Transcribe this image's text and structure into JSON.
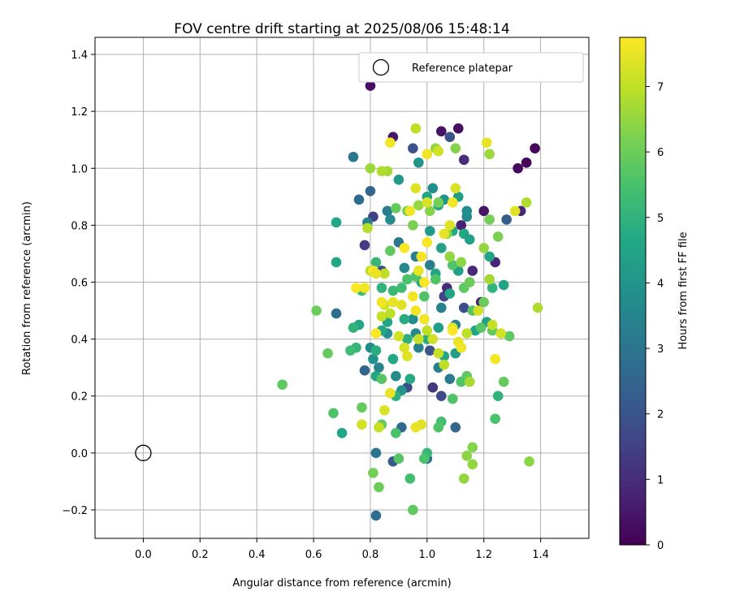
{
  "chart_data": {
    "type": "scatter",
    "title": "FOV centre drift starting at 2025/08/06 15:48:14",
    "xlabel": "Angular distance from reference (arcmin)",
    "ylabel": "Rotation from reference (arcmin)",
    "xlim": [
      -0.17,
      1.57
    ],
    "ylim": [
      -0.3,
      1.46
    ],
    "xticks": [
      "0.0",
      "0.2",
      "0.4",
      "0.6",
      "0.8",
      "1.0",
      "1.2",
      "1.4"
    ],
    "yticks": [
      "−0.2",
      "0.0",
      "0.2",
      "0.4",
      "0.6",
      "0.8",
      "1.0",
      "1.2",
      "1.4"
    ],
    "grid": true,
    "legend": {
      "position": "top-right",
      "entries": [
        "Reference platepar"
      ]
    },
    "colorbar": {
      "label": "Hours from first FF file",
      "min": 0,
      "max": 7.75,
      "ticks": [
        "0",
        "1",
        "2",
        "3",
        "4",
        "5",
        "6",
        "7"
      ],
      "colormap": "viridis"
    },
    "reference_point": {
      "x": 0.0,
      "y": 0.0
    },
    "points": [
      [
        0.8,
        1.29,
        0.3
      ],
      [
        1.05,
        1.13,
        0.4
      ],
      [
        1.11,
        1.14,
        0.3
      ],
      [
        1.38,
        1.07,
        0.2
      ],
      [
        1.35,
        1.02,
        0.1
      ],
      [
        1.32,
        1.0,
        0.2
      ],
      [
        0.88,
        1.11,
        0.5
      ],
      [
        1.08,
        1.11,
        2.0
      ],
      [
        0.95,
        1.07,
        2.0
      ],
      [
        1.13,
        1.03,
        1.0
      ],
      [
        1.33,
        0.85,
        0.8
      ],
      [
        1.12,
        0.8,
        0.7
      ],
      [
        1.28,
        0.82,
        2.3
      ],
      [
        1.2,
        0.85,
        0.4
      ],
      [
        1.24,
        0.67,
        0.8
      ],
      [
        1.16,
        0.64,
        0.9
      ],
      [
        1.19,
        0.53,
        0.8
      ],
      [
        0.81,
        0.83,
        1.5
      ],
      [
        0.8,
        0.92,
        2.5
      ],
      [
        0.78,
        0.73,
        1.3
      ],
      [
        0.76,
        0.89,
        2.7
      ],
      [
        0.68,
        0.49,
        2.8
      ],
      [
        0.78,
        0.29,
        2.5
      ],
      [
        0.84,
        0.64,
        1.8
      ],
      [
        1.06,
        0.55,
        1.6
      ],
      [
        1.07,
        0.58,
        0.9
      ],
      [
        1.13,
        0.51,
        1.8
      ],
      [
        1.01,
        0.36,
        2.0
      ],
      [
        1.02,
        0.23,
        1.3
      ],
      [
        1.05,
        0.2,
        1.7
      ],
      [
        1.1,
        0.09,
        2.5
      ],
      [
        0.93,
        0.23,
        1.8
      ],
      [
        0.91,
        0.09,
        2.7
      ],
      [
        0.82,
        0.0,
        3.0
      ],
      [
        0.88,
        -0.03,
        2.2
      ],
      [
        0.82,
        -0.22,
        2.8
      ],
      [
        1.0,
        -0.02,
        2.8
      ],
      [
        0.74,
        1.04,
        3.1
      ],
      [
        0.86,
        0.85,
        3.2
      ],
      [
        0.79,
        0.81,
        3.4
      ],
      [
        0.87,
        0.82,
        3.7
      ],
      [
        0.9,
        0.74,
        3.1
      ],
      [
        0.96,
        0.69,
        3.3
      ],
      [
        1.01,
        0.66,
        3.3
      ],
      [
        0.92,
        0.65,
        3.6
      ],
      [
        1.05,
        0.51,
        3.4
      ],
      [
        1.1,
        0.45,
        3.4
      ],
      [
        0.96,
        0.42,
        3.6
      ],
      [
        0.95,
        0.47,
        3.8
      ],
      [
        0.8,
        0.37,
        3.7
      ],
      [
        0.83,
        0.3,
        3.4
      ],
      [
        0.81,
        0.33,
        3.9
      ],
      [
        0.86,
        0.42,
        3.8
      ],
      [
        0.89,
        0.27,
        3.7
      ],
      [
        0.91,
        0.22,
        3.9
      ],
      [
        0.97,
        0.37,
        3.4
      ],
      [
        1.04,
        0.3,
        3.3
      ],
      [
        1.08,
        0.26,
        3.2
      ],
      [
        1.14,
        0.83,
        3.6
      ],
      [
        1.14,
        0.85,
        3.8
      ],
      [
        1.02,
        0.93,
        3.8
      ],
      [
        1.06,
        0.89,
        4.0
      ],
      [
        1.11,
        0.9,
        4.3
      ],
      [
        0.9,
        0.96,
        4.1
      ],
      [
        0.97,
        1.02,
        4.0
      ],
      [
        1.0,
        0.9,
        4.5
      ],
      [
        1.04,
        0.87,
        4.7
      ],
      [
        1.09,
        0.78,
        4.7
      ],
      [
        1.13,
        0.77,
        4.6
      ],
      [
        1.01,
        0.78,
        4.2
      ],
      [
        1.05,
        0.72,
        4.4
      ],
      [
        0.98,
        0.6,
        4.6
      ],
      [
        1.03,
        0.63,
        4.5
      ],
      [
        1.08,
        0.56,
        4.5
      ],
      [
        1.11,
        0.64,
        4.3
      ],
      [
        1.15,
        0.75,
        4.4
      ],
      [
        1.22,
        0.69,
        4.5
      ],
      [
        1.23,
        0.58,
        5.0
      ],
      [
        1.27,
        0.59,
        4.5
      ],
      [
        1.21,
        0.46,
        4.4
      ],
      [
        1.17,
        0.43,
        4.6
      ],
      [
        1.12,
        0.37,
        4.5
      ],
      [
        1.1,
        0.35,
        4.3
      ],
      [
        1.06,
        0.34,
        4.5
      ],
      [
        1.04,
        0.44,
        4.3
      ],
      [
        1.0,
        0.4,
        4.8
      ],
      [
        0.93,
        0.4,
        4.9
      ],
      [
        0.92,
        0.47,
        4.8
      ],
      [
        0.86,
        0.46,
        4.5
      ],
      [
        0.84,
        0.43,
        4.6
      ],
      [
        0.82,
        0.36,
        4.8
      ],
      [
        0.82,
        0.27,
        4.6
      ],
      [
        0.88,
        0.33,
        4.6
      ],
      [
        0.89,
        0.2,
        4.9
      ],
      [
        0.94,
        0.26,
        4.7
      ],
      [
        0.76,
        0.45,
        4.5
      ],
      [
        0.75,
        0.37,
        5.1
      ],
      [
        0.73,
        0.36,
        5.3
      ],
      [
        0.74,
        0.44,
        5.0
      ],
      [
        0.7,
        0.07,
        4.5
      ],
      [
        0.77,
        0.57,
        5.3
      ],
      [
        0.82,
        0.67,
        5.1
      ],
      [
        0.84,
        0.58,
        5.0
      ],
      [
        0.88,
        0.57,
        5.2
      ],
      [
        0.91,
        0.58,
        5.3
      ],
      [
        0.93,
        0.61,
        5.5
      ],
      [
        0.96,
        0.62,
        5.6
      ],
      [
        0.99,
        0.55,
        5.6
      ],
      [
        1.03,
        0.61,
        5.6
      ],
      [
        1.09,
        0.66,
        5.6
      ],
      [
        1.13,
        0.58,
        5.8
      ],
      [
        1.16,
        0.5,
        5.7
      ],
      [
        1.19,
        0.44,
        5.7
      ],
      [
        1.23,
        0.43,
        5.8
      ],
      [
        1.29,
        0.41,
        5.8
      ],
      [
        1.27,
        0.25,
        5.9
      ],
      [
        1.25,
        0.2,
        5.0
      ],
      [
        1.24,
        0.12,
        5.5
      ],
      [
        1.14,
        0.27,
        5.8
      ],
      [
        1.12,
        0.25,
        5.6
      ],
      [
        1.09,
        0.19,
        5.6
      ],
      [
        1.05,
        0.11,
        5.4
      ],
      [
        1.04,
        0.09,
        5.6
      ],
      [
        1.0,
        0.0,
        5.2
      ],
      [
        0.99,
        -0.02,
        5.5
      ],
      [
        0.94,
        -0.09,
        5.4
      ],
      [
        0.9,
        -0.02,
        5.7
      ],
      [
        0.89,
        0.07,
        5.5
      ],
      [
        0.95,
        -0.2,
        5.8
      ],
      [
        0.83,
        -0.12,
        6.0
      ],
      [
        0.81,
        -0.07,
        6.1
      ],
      [
        0.84,
        0.1,
        5.9
      ],
      [
        0.77,
        0.16,
        5.9
      ],
      [
        0.84,
        0.26,
        5.7
      ],
      [
        0.67,
        0.14,
        5.6
      ],
      [
        0.61,
        0.5,
        6.0
      ],
      [
        0.65,
        0.35,
        5.9
      ],
      [
        0.49,
        0.24,
        5.8
      ],
      [
        0.68,
        0.81,
        4.6
      ],
      [
        0.68,
        0.67,
        4.6
      ],
      [
        0.87,
        0.71,
        5.8
      ],
      [
        0.89,
        0.86,
        5.9
      ],
      [
        0.93,
        0.85,
        6.1
      ],
      [
        0.95,
        0.8,
        6.2
      ],
      [
        0.97,
        0.87,
        6.5
      ],
      [
        1.01,
        0.85,
        6.3
      ],
      [
        1.04,
        0.88,
        6.1
      ],
      [
        1.07,
        0.77,
        6.3
      ],
      [
        1.08,
        0.69,
        6.5
      ],
      [
        1.12,
        0.67,
        6.4
      ],
      [
        1.15,
        0.6,
        6.0
      ],
      [
        1.2,
        0.53,
        6.0
      ],
      [
        1.22,
        0.61,
        6.7
      ],
      [
        1.25,
        0.76,
        6.2
      ],
      [
        1.22,
        0.82,
        6.1
      ],
      [
        1.2,
        0.72,
        6.5
      ],
      [
        1.22,
        1.05,
        6.6
      ],
      [
        1.1,
        1.07,
        6.3
      ],
      [
        1.03,
        1.07,
        6.5
      ],
      [
        1.35,
        0.88,
        6.8
      ],
      [
        0.96,
        1.14,
        7.0
      ],
      [
        0.86,
        0.99,
        6.7
      ],
      [
        0.84,
        0.99,
        6.8
      ],
      [
        0.8,
        1.0,
        6.6
      ],
      [
        0.79,
        0.79,
        6.9
      ],
      [
        0.8,
        0.64,
        6.9
      ],
      [
        0.85,
        0.63,
        7.0
      ],
      [
        0.85,
        0.52,
        7.2
      ],
      [
        0.84,
        0.48,
        7.1
      ],
      [
        0.87,
        0.49,
        7.0
      ],
      [
        0.9,
        0.41,
        7.2
      ],
      [
        0.92,
        0.37,
        7.3
      ],
      [
        0.93,
        0.34,
        7.4
      ],
      [
        0.97,
        0.4,
        7.1
      ],
      [
        1.0,
        0.43,
        7.0
      ],
      [
        1.02,
        0.4,
        7.2
      ],
      [
        1.04,
        0.35,
        7.1
      ],
      [
        1.06,
        0.31,
        7.0
      ],
      [
        1.09,
        0.44,
        7.3
      ],
      [
        1.11,
        0.39,
        7.5
      ],
      [
        1.14,
        0.42,
        7.0
      ],
      [
        1.18,
        0.5,
        7.2
      ],
      [
        1.23,
        0.45,
        7.1
      ],
      [
        1.26,
        0.42,
        7.2
      ],
      [
        1.24,
        0.33,
        7.6
      ],
      [
        1.15,
        0.25,
        6.7
      ],
      [
        1.16,
        0.02,
        6.3
      ],
      [
        1.14,
        -0.01,
        6.4
      ],
      [
        1.16,
        -0.04,
        6.5
      ],
      [
        1.13,
        -0.09,
        6.5
      ],
      [
        1.36,
        -0.03,
        6.4
      ],
      [
        1.39,
        0.51,
        6.8
      ],
      [
        1.31,
        0.85,
        7.4
      ],
      [
        1.21,
        1.09,
        7.5
      ],
      [
        1.04,
        1.06,
        7.2
      ],
      [
        1.0,
        1.05,
        7.6
      ],
      [
        0.87,
        1.09,
        7.6
      ],
      [
        0.94,
        0.85,
        7.6
      ],
      [
        0.96,
        0.93,
        7.4
      ],
      [
        1.0,
        0.88,
        7.3
      ],
      [
        1.08,
        0.8,
        7.4
      ],
      [
        1.09,
        0.88,
        7.6
      ],
      [
        1.06,
        0.77,
        7.5
      ],
      [
        1.0,
        0.74,
        7.7
      ],
      [
        0.98,
        0.69,
        7.6
      ],
      [
        0.99,
        0.6,
        7.7
      ],
      [
        0.97,
        0.64,
        7.5
      ],
      [
        0.96,
        0.5,
        7.6
      ],
      [
        0.99,
        0.47,
        7.6
      ],
      [
        0.92,
        0.72,
        7.7
      ],
      [
        0.81,
        0.64,
        7.7
      ],
      [
        0.78,
        0.58,
        7.6
      ],
      [
        0.82,
        0.63,
        7.5
      ],
      [
        0.84,
        0.53,
        7.6
      ],
      [
        0.82,
        0.42,
        7.7
      ],
      [
        0.88,
        0.53,
        7.5
      ],
      [
        0.91,
        0.52,
        7.4
      ],
      [
        0.95,
        0.55,
        7.6
      ],
      [
        1.09,
        0.43,
        7.7
      ],
      [
        1.12,
        0.37,
        7.6
      ],
      [
        0.98,
        0.1,
        7.4
      ],
      [
        0.96,
        0.09,
        7.5
      ],
      [
        0.85,
        0.15,
        7.3
      ],
      [
        0.87,
        0.21,
        7.5
      ],
      [
        0.83,
        0.09,
        7.1
      ],
      [
        0.75,
        0.58,
        7.7
      ],
      [
        0.77,
        0.1,
        7.2
      ],
      [
        1.1,
        0.93,
        7.3
      ]
    ]
  }
}
